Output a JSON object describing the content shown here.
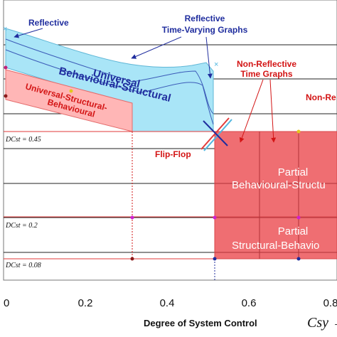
{
  "chart_data": {
    "type": "area",
    "xlim": [
      0,
      1
    ],
    "xticks": [
      "0",
      "0.2",
      "0.4",
      "0.6",
      "0.8"
    ],
    "xticks_values": [
      0,
      0.2,
      0.4,
      0.6,
      0.8
    ],
    "x_axis_label": "Degree of System Control",
    "x_axis_symbol": "Csy →",
    "dcst_levels": [
      {
        "label": "DCst = 0.45",
        "value": 0.45
      },
      {
        "label": "DCst = 0.2",
        "value": 0.2
      },
      {
        "label": "DCst = 0.08",
        "value": 0.08
      }
    ],
    "regions": [
      {
        "name": "Universal Behavioural-Structural",
        "color": "#a9e5f7"
      },
      {
        "name": "Universal Structural-Behavioural",
        "color": "#ffb6b6"
      },
      {
        "name": "Partial Behavioural-Structural",
        "color": "#ef6e72"
      },
      {
        "name": "Partial Structural-Behavioural",
        "color": "#ef6e72"
      }
    ],
    "annotations": {
      "reflective": "Reflective",
      "reflective_tvg": [
        "Reflective",
        "Time-Varying Graphs"
      ],
      "non_reflective_tg": [
        "Non-Reflective",
        "Time Graphs"
      ],
      "non_re": "Non-Re",
      "flip_flop": "Flip-Flop",
      "universal_bs": [
        "Universal",
        "Behavioural-Structural"
      ],
      "universal_sb": [
        "Universal-Structural-",
        "Behavioural"
      ],
      "partial_bs": [
        "Partial",
        "Behavioural-Structu"
      ],
      "partial_sb": [
        "Partial",
        "Structural-Behavio"
      ]
    },
    "colors": {
      "blue_text": "#1f2d9e",
      "red_text": "#d31414",
      "universal_bs_fill": "#a9e5f7",
      "universal_sb_fill": "#ffb6b6",
      "partial_fill": "#ef6e72"
    }
  }
}
